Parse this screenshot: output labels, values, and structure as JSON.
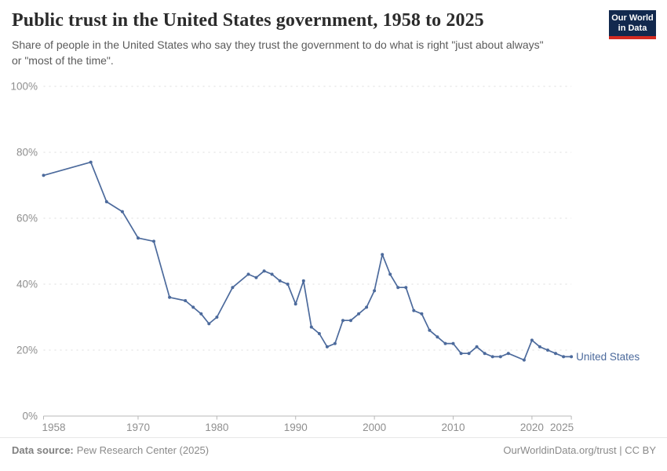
{
  "header": {
    "title": "Public trust in the United States government, 1958 to 2025",
    "subtitle_lines": [
      "Share of people in the United States who say they trust the government to do what is right \"just about always\"",
      "or \"most of the time\"."
    ],
    "logo": {
      "line1": "Our World",
      "line2": "in Data"
    }
  },
  "chart_data": {
    "type": "line",
    "title": "Public trust in the United States government, 1958 to 2025",
    "xlabel": "",
    "ylabel": "",
    "xlim": [
      1958,
      2025
    ],
    "ylim": [
      0,
      100
    ],
    "x_ticks": [
      1958,
      1970,
      1980,
      1990,
      2000,
      2010,
      2020,
      2025
    ],
    "y_ticks": [
      0,
      20,
      40,
      60,
      80,
      100
    ],
    "y_tick_suffix": "%",
    "grid": "horizontal-dashed",
    "legend_position": "line-end-label",
    "series": [
      {
        "name": "United States",
        "color": "#4C6A9C",
        "points": [
          [
            1958,
            73
          ],
          [
            1964,
            77
          ],
          [
            1966,
            65
          ],
          [
            1968,
            62
          ],
          [
            1970,
            54
          ],
          [
            1972,
            53
          ],
          [
            1974,
            36
          ],
          [
            1976,
            35
          ],
          [
            1977,
            33
          ],
          [
            1978,
            31
          ],
          [
            1979,
            28
          ],
          [
            1980,
            30
          ],
          [
            1982,
            39
          ],
          [
            1984,
            43
          ],
          [
            1985,
            42
          ],
          [
            1986,
            44
          ],
          [
            1987,
            43
          ],
          [
            1988,
            41
          ],
          [
            1989,
            40
          ],
          [
            1990,
            34
          ],
          [
            1991,
            41
          ],
          [
            1992,
            27
          ],
          [
            1993,
            25
          ],
          [
            1994,
            21
          ],
          [
            1995,
            22
          ],
          [
            1996,
            29
          ],
          [
            1997,
            29
          ],
          [
            1998,
            31
          ],
          [
            1999,
            33
          ],
          [
            2000,
            38
          ],
          [
            2001,
            49
          ],
          [
            2002,
            43
          ],
          [
            2003,
            39
          ],
          [
            2004,
            39
          ],
          [
            2005,
            32
          ],
          [
            2006,
            31
          ],
          [
            2007,
            26
          ],
          [
            2008,
            24
          ],
          [
            2009,
            22
          ],
          [
            2010,
            22
          ],
          [
            2011,
            19
          ],
          [
            2012,
            19
          ],
          [
            2013,
            21
          ],
          [
            2014,
            19
          ],
          [
            2015,
            18
          ],
          [
            2016,
            18
          ],
          [
            2017,
            19
          ],
          [
            2019,
            17
          ],
          [
            2020,
            23
          ],
          [
            2021,
            21
          ],
          [
            2022,
            20
          ],
          [
            2023,
            19
          ],
          [
            2024,
            18
          ],
          [
            2025,
            18
          ]
        ]
      }
    ]
  },
  "footer": {
    "data_source_label": "Data source:",
    "data_source_value": "Pew Research Center (2025)",
    "attribution": "OurWorldinData.org/trust | CC BY"
  },
  "colors": {
    "line": "#4C6A9C",
    "grid": "#dddddd",
    "axis": "#b8b8b8",
    "tick_label": "#8f8f8f",
    "logo_bg": "#12294e",
    "logo_accent": "#d42b21"
  }
}
